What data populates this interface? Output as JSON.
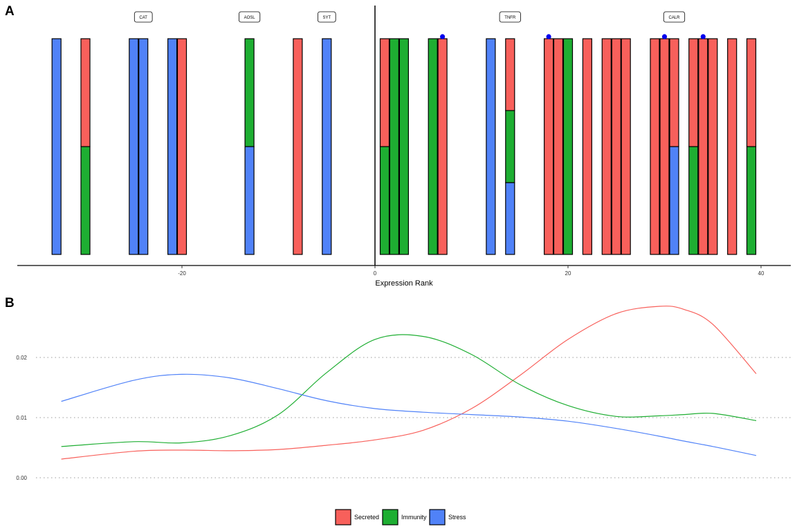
{
  "panel_labels": {
    "a": "A",
    "b": "B"
  },
  "colors": {
    "Secreted": "#F8605B",
    "Immunity": "#1EAE32",
    "Stress": "#5082F8",
    "marker": "#0000EE"
  },
  "chart_data": [
    {
      "type": "bar",
      "panel": "A",
      "xlabel": "Expression Rank",
      "xlim": [
        -37,
        43
      ],
      "xticks": [
        -20,
        0,
        20,
        40
      ],
      "tick_labels": [
        "-20",
        "0",
        "20",
        "40"
      ],
      "gene_labels": [
        {
          "label": "CAT",
          "x": -24
        },
        {
          "label": "AOSL",
          "x": -13
        },
        {
          "label": "SYT",
          "x": -5
        },
        {
          "label": "TNFR",
          "x": 14
        },
        {
          "label": "CALR",
          "x": 31
        }
      ],
      "bars": [
        {
          "x": -33,
          "segments": [
            [
              "Stress",
              1
            ]
          ]
        },
        {
          "x": -30,
          "segments": [
            [
              "Immunity",
              0.5
            ],
            [
              "Secreted",
              0.5
            ]
          ]
        },
        {
          "x": -25,
          "segments": [
            [
              "Stress",
              1
            ]
          ]
        },
        {
          "x": -24,
          "segments": [
            [
              "Stress",
              1
            ]
          ]
        },
        {
          "x": -21,
          "segments": [
            [
              "Stress",
              1
            ]
          ]
        },
        {
          "x": -20,
          "segments": [
            [
              "Secreted",
              1
            ]
          ]
        },
        {
          "x": -13,
          "segments": [
            [
              "Stress",
              0.5
            ],
            [
              "Immunity",
              0.5
            ]
          ]
        },
        {
          "x": -8,
          "segments": [
            [
              "Secreted",
              1
            ]
          ]
        },
        {
          "x": -5,
          "segments": [
            [
              "Stress",
              1
            ]
          ]
        },
        {
          "x": 1,
          "segments": [
            [
              "Immunity",
              0.5
            ],
            [
              "Secreted",
              0.5
            ]
          ]
        },
        {
          "x": 2,
          "segments": [
            [
              "Immunity",
              1
            ]
          ]
        },
        {
          "x": 3,
          "segments": [
            [
              "Immunity",
              1
            ]
          ]
        },
        {
          "x": 6,
          "segments": [
            [
              "Immunity",
              1
            ]
          ]
        },
        {
          "x": 7,
          "segments": [
            [
              "Secreted",
              1
            ]
          ],
          "marker": true
        },
        {
          "x": 12,
          "segments": [
            [
              "Stress",
              1
            ]
          ]
        },
        {
          "x": 14,
          "segments": [
            [
              "Stress",
              0.333
            ],
            [
              "Immunity",
              0.334
            ],
            [
              "Secreted",
              0.333
            ]
          ]
        },
        {
          "x": 18,
          "segments": [
            [
              "Secreted",
              1
            ]
          ],
          "marker": true
        },
        {
          "x": 19,
          "segments": [
            [
              "Secreted",
              1
            ]
          ]
        },
        {
          "x": 20,
          "segments": [
            [
              "Immunity",
              1
            ]
          ]
        },
        {
          "x": 22,
          "segments": [
            [
              "Secreted",
              1
            ]
          ]
        },
        {
          "x": 24,
          "segments": [
            [
              "Secreted",
              1
            ]
          ]
        },
        {
          "x": 25,
          "segments": [
            [
              "Secreted",
              1
            ]
          ]
        },
        {
          "x": 26,
          "segments": [
            [
              "Secreted",
              1
            ]
          ]
        },
        {
          "x": 29,
          "segments": [
            [
              "Secreted",
              1
            ]
          ]
        },
        {
          "x": 30,
          "segments": [
            [
              "Secreted",
              1
            ]
          ],
          "marker": true
        },
        {
          "x": 31,
          "segments": [
            [
              "Stress",
              0.5
            ],
            [
              "Secreted",
              0.5
            ]
          ]
        },
        {
          "x": 33,
          "segments": [
            [
              "Immunity",
              0.5
            ],
            [
              "Secreted",
              0.5
            ]
          ]
        },
        {
          "x": 34,
          "segments": [
            [
              "Secreted",
              1
            ]
          ],
          "marker": true
        },
        {
          "x": 35,
          "segments": [
            [
              "Secreted",
              1
            ]
          ]
        },
        {
          "x": 37,
          "segments": [
            [
              "Secreted",
              1
            ]
          ]
        },
        {
          "x": 39,
          "segments": [
            [
              "Immunity",
              0.5
            ],
            [
              "Secreted",
              0.5
            ]
          ]
        }
      ]
    },
    {
      "type": "line",
      "panel": "B",
      "ylim": [
        0,
        0.03
      ],
      "yticks": [
        0,
        0.01,
        0.02
      ],
      "tick_labels": [
        "0.00",
        "0.01",
        "0.02"
      ],
      "xlim": [
        -37,
        43
      ],
      "x": [
        -32.5,
        -25,
        -20,
        -15,
        -10,
        -5,
        0,
        5,
        10,
        15,
        20,
        25,
        29.5,
        32,
        35,
        39.5
      ],
      "series": [
        {
          "name": "Secreted",
          "values": [
            0.0031,
            0.0044,
            0.0046,
            0.0045,
            0.0047,
            0.0054,
            0.0063,
            0.0079,
            0.0115,
            0.017,
            0.023,
            0.0273,
            0.0285,
            0.028,
            0.0255,
            0.0173
          ]
        },
        {
          "name": "Immunity",
          "values": [
            0.0052,
            0.006,
            0.0058,
            0.007,
            0.0105,
            0.0175,
            0.023,
            0.0235,
            0.0205,
            0.0155,
            0.012,
            0.0102,
            0.0103,
            0.0105,
            0.0107,
            0.0095
          ]
        },
        {
          "name": "Stress",
          "values": [
            0.0127,
            0.0162,
            0.0172,
            0.0166,
            0.0148,
            0.0128,
            0.0115,
            0.0109,
            0.0105,
            0.0101,
            0.0094,
            0.0082,
            0.0069,
            0.0061,
            0.0052,
            0.0037
          ]
        }
      ]
    }
  ],
  "legend": {
    "items": [
      "Secreted",
      "Immunity",
      "Stress"
    ]
  }
}
